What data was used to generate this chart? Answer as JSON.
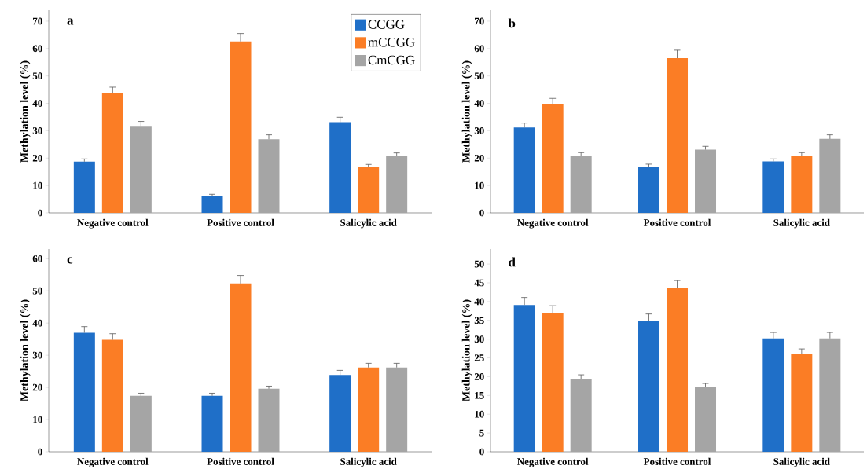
{
  "chart_data": [
    {
      "type": "bar",
      "title": "a",
      "ylabel": "Methylation level (%)",
      "categories": [
        "Negative control",
        "Positive control",
        "Salicylic acid"
      ],
      "ylim": [
        0,
        74
      ],
      "yticks": [
        0,
        10,
        20,
        30,
        40,
        50,
        60,
        70
      ],
      "legend": "top right",
      "series": [
        {
          "name": "CCGG",
          "color": "#1f6fc8",
          "values": [
            18.7,
            6.1,
            33.1
          ],
          "errors": [
            1,
            0.7,
            1.8
          ]
        },
        {
          "name": "mCCGG",
          "color": "#fb7d25",
          "values": [
            43.6,
            62.6,
            16.7
          ],
          "errors": [
            2.3,
            2.9,
            1
          ]
        },
        {
          "name": "CmCGG",
          "color": "#a5a5a5",
          "values": [
            31.5,
            26.9,
            20.7
          ],
          "errors": [
            1.9,
            1.6,
            1.2
          ]
        }
      ]
    },
    {
      "type": "bar",
      "title": "b",
      "ylabel": "Methylation level (%)",
      "categories": [
        "Negative control",
        "Positive control",
        "Salicylic acid"
      ],
      "ylim": [
        0,
        74
      ],
      "yticks": [
        0,
        10,
        20,
        30,
        40,
        50,
        60,
        70
      ],
      "series": [
        {
          "color": "#1f6fc8",
          "values": [
            31.2,
            16.8,
            18.8
          ],
          "errors": [
            1.6,
            1,
            0.9
          ]
        },
        {
          "color": "#fb7d25",
          "values": [
            39.6,
            56.5,
            20.8
          ],
          "errors": [
            2.2,
            2.9,
            1.2
          ]
        },
        {
          "color": "#a5a5a5",
          "values": [
            20.8,
            23.1,
            27
          ],
          "errors": [
            1.2,
            1.2,
            1.5
          ]
        }
      ]
    },
    {
      "type": "bar",
      "title": "c",
      "ylabel": "Methylation level (%)",
      "categories": [
        "Negative control",
        "Positive control",
        "Salicylic acid"
      ],
      "ylim": [
        0,
        63
      ],
      "yticks": [
        0,
        10,
        20,
        30,
        40,
        50,
        60
      ],
      "series": [
        {
          "color": "#1f6fc8",
          "values": [
            37,
            17.4,
            23.9
          ],
          "errors": [
            1.9,
            0.8,
            1.4
          ]
        },
        {
          "color": "#fb7d25",
          "values": [
            34.8,
            52.3,
            26.2
          ],
          "errors": [
            1.9,
            2.5,
            1.3
          ]
        },
        {
          "color": "#a5a5a5",
          "values": [
            17.4,
            19.6,
            26.2
          ],
          "errors": [
            0.8,
            0.8,
            1.3
          ]
        }
      ]
    },
    {
      "type": "bar",
      "title": "d",
      "ylabel": "Methylation level (%)",
      "categories": [
        "Negative control",
        "Positive control",
        "Salicylic acid"
      ],
      "ylim": [
        0,
        54
      ],
      "yticks": [
        0,
        5,
        10,
        15,
        20,
        25,
        30,
        35,
        40,
        45,
        50
      ],
      "series": [
        {
          "color": "#1f6fc8",
          "values": [
            39.1,
            34.8,
            30.2
          ],
          "errors": [
            2,
            1.9,
            1.6
          ]
        },
        {
          "color": "#fb7d25",
          "values": [
            37,
            43.6,
            26
          ],
          "errors": [
            1.9,
            2,
            1.4
          ]
        },
        {
          "color": "#a5a5a5",
          "values": [
            19.4,
            17.3,
            30.2
          ],
          "errors": [
            1.1,
            0.9,
            1.6
          ]
        }
      ]
    }
  ]
}
